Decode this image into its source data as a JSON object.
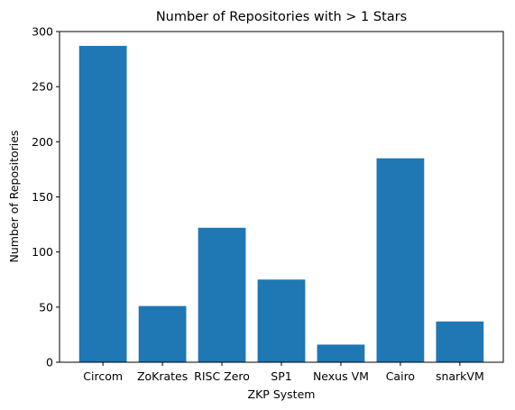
{
  "chart_data": {
    "type": "bar",
    "title": "Number of Repositories with > 1 Stars",
    "xlabel": "ZKP System",
    "ylabel": "Number of Repositories",
    "categories": [
      "Circom",
      "ZoKrates",
      "RISC Zero",
      "SP1",
      "Nexus VM",
      "Cairo",
      "snarkVM"
    ],
    "values": [
      287,
      51,
      122,
      75,
      16,
      185,
      37
    ],
    "ylim": [
      0,
      300
    ],
    "yticks": [
      0,
      50,
      100,
      150,
      200,
      250,
      300
    ],
    "grid": false,
    "bar_color": "#1f77b4"
  }
}
